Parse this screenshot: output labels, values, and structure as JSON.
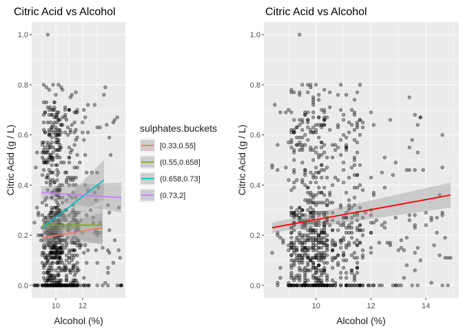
{
  "chart_data": [
    {
      "type": "scatter",
      "title": "Citric Acid vs Alcohol",
      "xlabel": "Alcohol (%)",
      "ylabel": "Citric Acid (g / L)",
      "xlim": [
        8.2,
        15.2
      ],
      "ylim": [
        -0.05,
        1.05
      ],
      "xticks": [
        10,
        12
      ],
      "yticks": [
        0.0,
        0.2,
        0.4,
        0.6,
        0.8,
        1.0
      ],
      "xtick_labels": [
        "10",
        "12"
      ],
      "ytick_labels": [
        "0.0",
        "0.2",
        "0.4",
        "0.6",
        "0.8",
        "1.0"
      ],
      "grid": true,
      "points": {
        "alcohol_range": [
          8.4,
          14.9
        ],
        "citric_acid_range": [
          0.0,
          1.0
        ],
        "point_color": "#000000",
        "point_alpha": 0.35
      },
      "legend": {
        "title": "sulphates.buckets",
        "placement": "right",
        "entries": [
          "[0.33,0.55]",
          "(0.55,0.658]",
          "(0.658,0.73]",
          "(0.73,2]"
        ]
      },
      "series": [
        {
          "name": "[0.33,0.55]",
          "color": "#F8766D",
          "x": [
            9.0,
            13.5
          ],
          "y": [
            0.19,
            0.23
          ],
          "se": [
            0.03,
            0.06
          ]
        },
        {
          "name": "(0.55,0.658]",
          "color": "#7CAE00",
          "x": [
            9.0,
            13.5
          ],
          "y": [
            0.24,
            0.24
          ],
          "se": [
            0.02,
            0.08
          ]
        },
        {
          "name": "(0.658,0.73]",
          "color": "#00BFC4",
          "x": [
            9.0,
            13.6
          ],
          "y": [
            0.23,
            0.42
          ],
          "se": [
            0.02,
            0.08
          ]
        },
        {
          "name": "(0.73,2]",
          "color": "#C77CFF",
          "x": [
            8.9,
            14.9
          ],
          "y": [
            0.37,
            0.35
          ],
          "se": [
            0.025,
            0.06
          ]
        }
      ]
    },
    {
      "type": "scatter",
      "title": "Citric Acid vs Alcohol",
      "xlabel": "Alcohol (%)",
      "ylabel": "Citric Acid (g / L)",
      "xlim": [
        8.1,
        15.2
      ],
      "ylim": [
        -0.05,
        1.05
      ],
      "xticks": [
        10,
        12,
        14
      ],
      "yticks": [
        0.0,
        0.2,
        0.4,
        0.6,
        0.8,
        1.0
      ],
      "xtick_labels": [
        "10",
        "12",
        "14"
      ],
      "ytick_labels": [
        "0.0",
        "0.2",
        "0.4",
        "0.6",
        "0.8",
        "1.0"
      ],
      "grid": true,
      "points": {
        "alcohol_range": [
          8.4,
          14.9
        ],
        "citric_acid_range": [
          0.0,
          1.0
        ],
        "point_color": "#000000",
        "point_alpha": 0.35
      },
      "series": [
        {
          "color": "#FF0000",
          "x": [
            8.4,
            14.9
          ],
          "y": [
            0.23,
            0.36
          ],
          "se": [
            0.02,
            0.05
          ]
        }
      ]
    }
  ]
}
